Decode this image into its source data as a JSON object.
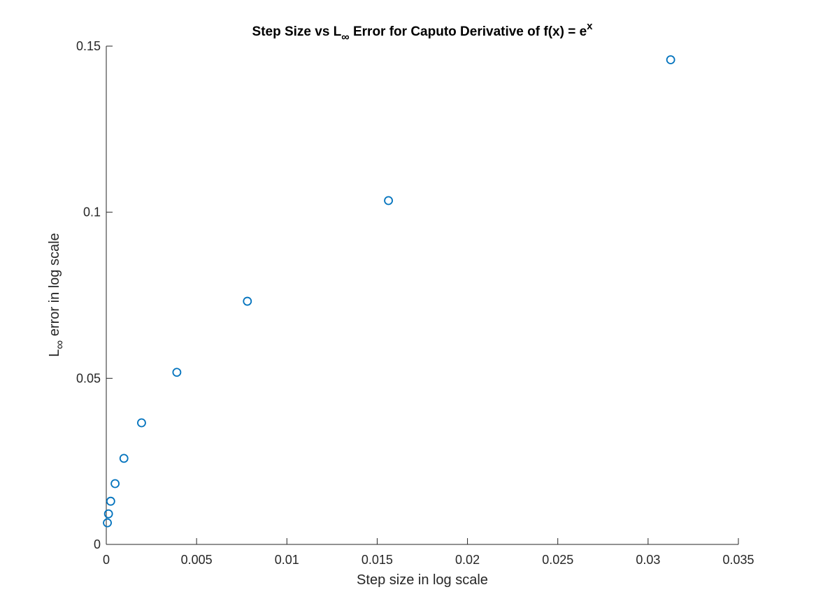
{
  "chart_data": {
    "type": "scatter",
    "title": {
      "prefix": "Step Size vs L",
      "subscript": "∞",
      "middle": " Error for Caputo Derivative of f(x) = e",
      "superscript": "x"
    },
    "xlabel": "Step size in log scale",
    "ylabel": {
      "prefix": "L",
      "subscript": "∞",
      "suffix": " error in log scale"
    },
    "xlim": [
      0,
      0.035
    ],
    "ylim": [
      0,
      0.15
    ],
    "xticks": [
      0,
      0.005,
      0.01,
      0.015,
      0.02,
      0.025,
      0.03,
      0.035
    ],
    "xtick_labels": [
      "0",
      "0.005",
      "0.01",
      "0.015",
      "0.02",
      "0.025",
      "0.03",
      "0.035"
    ],
    "yticks": [
      0,
      0.05,
      0.1,
      0.15
    ],
    "ytick_labels": [
      "0",
      "0.05",
      "0.1",
      "0.15"
    ],
    "grid": false,
    "marker": "open-circle",
    "marker_color": "#0072BD",
    "series": [
      {
        "x": [
          6.104e-05,
          0.00012207,
          0.00024414,
          0.00048828,
          0.00097656,
          0.00195313,
          0.00390625,
          0.0078125,
          0.015625,
          0.03125
        ],
        "y": [
          0.0065,
          0.0092,
          0.013,
          0.0183,
          0.0259,
          0.0366,
          0.0518,
          0.0732,
          0.1035,
          0.1459
        ]
      }
    ]
  }
}
